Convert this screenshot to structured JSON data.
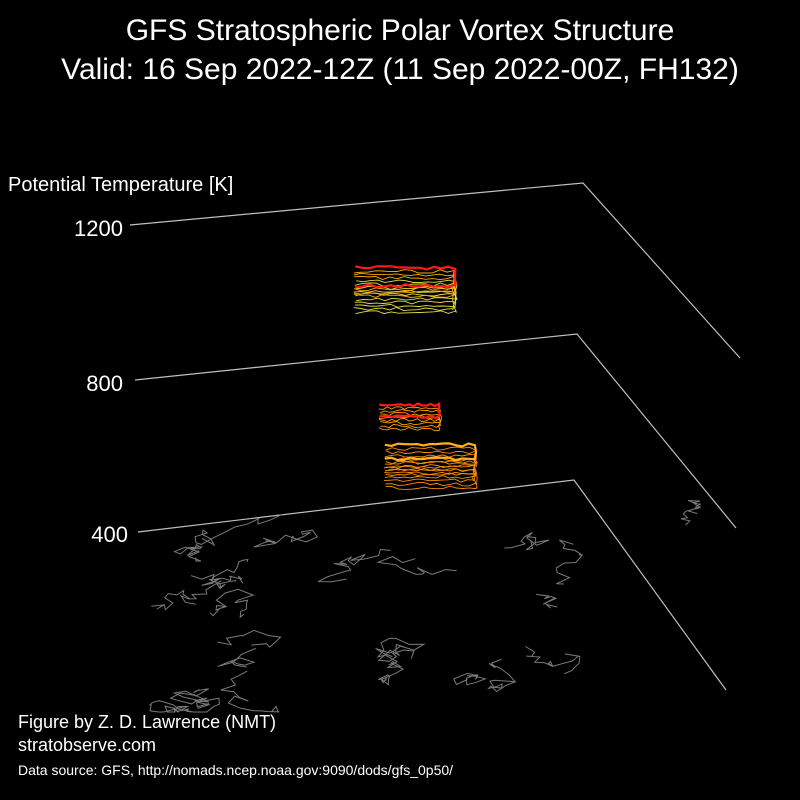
{
  "chart_data": {
    "type": "3d-contour",
    "title": "GFS Stratospheric Polar Vortex Structure",
    "subtitle": "Valid: 16 Sep 2022-12Z  (11 Sep 2022-00Z, FH132)",
    "zlabel": "Potential Temperature [K]",
    "zticks": [
      "1200",
      "800",
      "400"
    ],
    "zlim": [
      400,
      1200
    ],
    "series": [
      {
        "level_range": [
          1050,
          1200
        ],
        "colors": [
          "#ff1a1a",
          "#ffb000",
          "#e8e040"
        ]
      },
      {
        "level_range": [
          800,
          900
        ],
        "colors": [
          "#ff1a1a",
          "#ff9a00"
        ]
      },
      {
        "level_range": [
          520,
          700
        ],
        "colors": [
          "#ffb020",
          "#ff8c00"
        ]
      }
    ],
    "colors": {
      "background": "#000000",
      "axes": "#bfbfbf",
      "coastline": "#7a7a7a",
      "vortex_edge": "#ff1a1a",
      "vortex_fill": "#e8e040"
    }
  },
  "credit": {
    "line1": "Figure by Z. D. Lawrence (NMT)",
    "line2": "stratobserve.com"
  },
  "source": "Data source: GFS, http://nomads.ncep.noaa.gov:9090/dods/gfs_0p50/"
}
